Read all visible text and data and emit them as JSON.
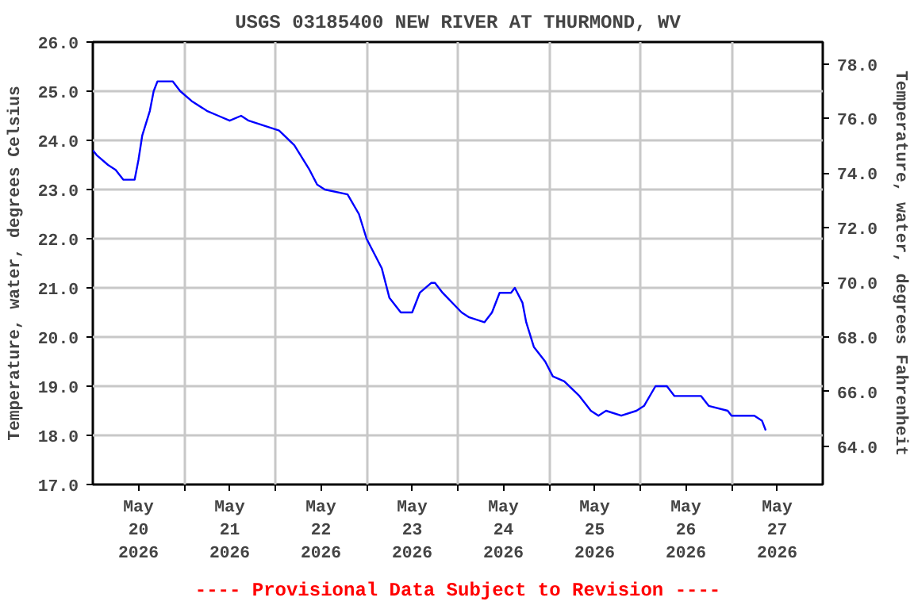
{
  "chart_data": {
    "type": "line",
    "title": "USGS 03185400 NEW RIVER AT THURMOND, WV",
    "ylabel": "Temperature, water, degrees Celsius",
    "y2label": "Temperature, water, degrees Fahrenheit",
    "annotations": [
      "---- Provisional Data Subject to Revision ----"
    ],
    "series": [
      {
        "color": "#0000ff",
        "x": [
          "2026-05-20T00:00",
          "2026-05-20T01:00",
          "2026-05-20T04:00",
          "2026-05-20T06:00",
          "2026-05-20T08:00",
          "2026-05-20T11:00",
          "2026-05-20T12:00",
          "2026-05-20T13:00",
          "2026-05-20T15:00",
          "2026-05-20T16:00",
          "2026-05-20T17:00",
          "2026-05-20T21:00",
          "2026-05-20T23:00",
          "2026-05-21T02:00",
          "2026-05-21T06:00",
          "2026-05-21T09:00",
          "2026-05-21T12:00",
          "2026-05-21T15:00",
          "2026-05-21T17:00",
          "2026-05-21T21:00",
          "2026-05-22T01:00",
          "2026-05-22T05:00",
          "2026-05-22T09:00",
          "2026-05-22T11:00",
          "2026-05-22T13:00",
          "2026-05-22T19:00",
          "2026-05-22T22:00",
          "2026-05-23T00:00",
          "2026-05-23T04:00",
          "2026-05-23T06:00",
          "2026-05-23T09:00",
          "2026-05-23T12:00",
          "2026-05-23T14:00",
          "2026-05-23T17:00",
          "2026-05-23T18:00",
          "2026-05-23T20:00",
          "2026-05-24T01:00",
          "2026-05-24T03:00",
          "2026-05-24T07:00",
          "2026-05-24T09:00",
          "2026-05-24T11:00",
          "2026-05-24T14:00",
          "2026-05-24T15:00",
          "2026-05-24T17:00",
          "2026-05-24T18:00",
          "2026-05-24T20:00",
          "2026-05-24T23:00",
          "2026-05-25T01:00",
          "2026-05-25T04:00",
          "2026-05-25T08:00",
          "2026-05-25T11:00",
          "2026-05-25T13:00",
          "2026-05-25T15:00",
          "2026-05-25T19:00",
          "2026-05-25T23:00",
          "2026-05-26T01:00",
          "2026-05-26T04:00",
          "2026-05-26T07:00",
          "2026-05-26T09:00",
          "2026-05-26T16:00",
          "2026-05-26T18:00",
          "2026-05-26T23:00",
          "2026-05-27T00:00",
          "2026-05-27T06:00",
          "2026-05-27T08:00",
          "2026-05-27T09:00"
        ],
        "values": [
          23.8,
          23.7,
          23.5,
          23.4,
          23.2,
          23.2,
          23.6,
          24.1,
          24.6,
          25.0,
          25.2,
          25.2,
          25.0,
          24.8,
          24.6,
          24.5,
          24.4,
          24.5,
          24.4,
          24.3,
          24.2,
          23.9,
          23.4,
          23.1,
          23.0,
          22.9,
          22.5,
          22.0,
          21.4,
          20.8,
          20.5,
          20.5,
          20.9,
          21.1,
          21.1,
          20.9,
          20.5,
          20.4,
          20.3,
          20.5,
          20.9,
          20.9,
          21.0,
          20.7,
          20.3,
          19.8,
          19.5,
          19.2,
          19.1,
          18.8,
          18.5,
          18.4,
          18.5,
          18.4,
          18.5,
          18.6,
          19.0,
          19.0,
          18.8,
          18.8,
          18.6,
          18.5,
          18.4,
          18.4,
          18.3,
          18.1
        ]
      }
    ],
    "xlim": [
      "2026-05-20T00:00",
      "2026-05-28T00:00"
    ],
    "xticks": [
      {
        "value": "2026-05-20T12:00",
        "label": "May\n20\n2026"
      },
      {
        "value": "2026-05-21T12:00",
        "label": "May\n21\n2026"
      },
      {
        "value": "2026-05-22T12:00",
        "label": "May\n22\n2026"
      },
      {
        "value": "2026-05-23T12:00",
        "label": "May\n23\n2026"
      },
      {
        "value": "2026-05-24T12:00",
        "label": "May\n24\n2026"
      },
      {
        "value": "2026-05-25T12:00",
        "label": "May\n25\n2026"
      },
      {
        "value": "2026-05-26T12:00",
        "label": "May\n26\n2026"
      },
      {
        "value": "2026-05-27T12:00",
        "label": "May\n27\n2026"
      },
      {
        "value": "2026-05-21T00:00",
        "label": null
      },
      {
        "value": "2026-05-22T00:00",
        "label": null
      },
      {
        "value": "2026-05-23T00:00",
        "label": null
      },
      {
        "value": "2026-05-24T00:00",
        "label": null
      },
      {
        "value": "2026-05-25T00:00",
        "label": null
      },
      {
        "value": "2026-05-26T00:00",
        "label": null
      },
      {
        "value": "2026-05-27T00:00",
        "label": null
      }
    ],
    "ylim": [
      17.0,
      26.0
    ],
    "yticks": [
      {
        "value": 17,
        "label": "17.0"
      },
      {
        "value": 18,
        "label": "18.0"
      },
      {
        "value": 19,
        "label": "19.0"
      },
      {
        "value": 20,
        "label": "20.0"
      },
      {
        "value": 21,
        "label": "21.0"
      },
      {
        "value": 22,
        "label": "22.0"
      },
      {
        "value": 23,
        "label": "23.0"
      },
      {
        "value": 24,
        "label": "24.0"
      },
      {
        "value": 25,
        "label": "25.0"
      },
      {
        "value": 26,
        "label": "26.0"
      }
    ],
    "y2lim": [
      62.6,
      78.8
    ],
    "y2ticks": [
      {
        "value": 64,
        "label": "64.0"
      },
      {
        "value": 66,
        "label": "66.0"
      },
      {
        "value": 68,
        "label": "68.0"
      },
      {
        "value": 70,
        "label": "70.0"
      },
      {
        "value": 72,
        "label": "72.0"
      },
      {
        "value": 74,
        "label": "74.0"
      },
      {
        "value": 76,
        "label": "76.0"
      },
      {
        "value": 78,
        "label": "78.0"
      }
    ],
    "grid": true
  }
}
